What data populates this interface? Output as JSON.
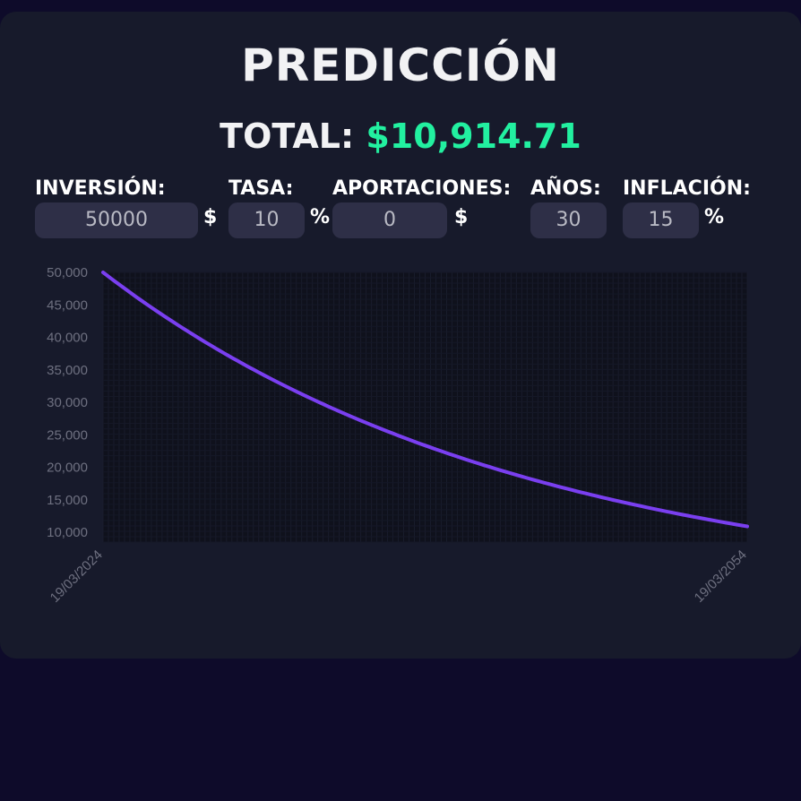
{
  "header": {
    "title": "PREDICCIÓN",
    "total_label": "TOTAL:",
    "total_value": "$10,914.71"
  },
  "inputs": {
    "inversion": {
      "label": "INVERSIÓN:",
      "value": "50000",
      "unit": "$"
    },
    "tasa": {
      "label": "TASA:",
      "value": "10",
      "unit": "%"
    },
    "aportaciones": {
      "label": "APORTACIONES:",
      "value": "0",
      "unit": "$"
    },
    "anos": {
      "label": "AÑOS:",
      "value": "30"
    },
    "inflacion": {
      "label": "INFLACIÓN:",
      "value": "15",
      "unit": "%"
    }
  },
  "colors": {
    "background": "#0e0b2a",
    "card": "#171a2b",
    "plot": "#0f111c",
    "line": "#7a3ff0",
    "accent": "#22f0a0",
    "tick": "#6e7080"
  },
  "chart_data": {
    "type": "line",
    "x_tick_labels": [
      "19/03/2024",
      "19/03/2054"
    ],
    "y_ticks": [
      10000,
      15000,
      20000,
      25000,
      30000,
      35000,
      40000,
      45000,
      50000
    ],
    "y_tick_labels": [
      "10,000",
      "15,000",
      "20,000",
      "25,000",
      "30,000",
      "35,000",
      "40,000",
      "45,000",
      "50,000"
    ],
    "ylim": [
      8500,
      50000
    ],
    "grid": true,
    "series": [
      {
        "x_years": [
          0,
          5,
          10,
          15,
          20,
          25,
          30
        ],
        "values": [
          50000,
          38300,
          29700,
          23200,
          18200,
          14100,
          10914.71
        ]
      }
    ]
  }
}
